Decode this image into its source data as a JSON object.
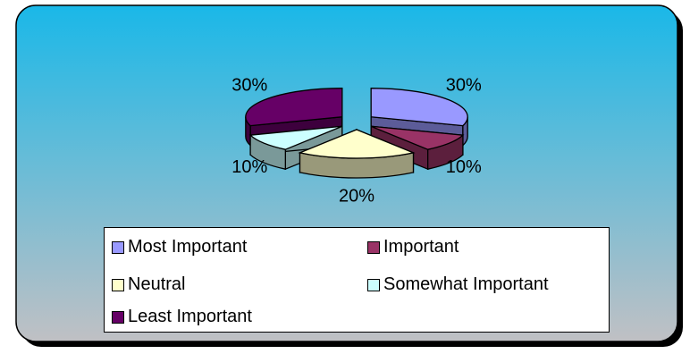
{
  "chart_data": {
    "type": "pie",
    "title": "",
    "categories": [
      "Most Important",
      "Important",
      "Neutral",
      "Somewhat Important",
      "Least Important"
    ],
    "values": [
      30,
      10,
      20,
      10,
      30
    ],
    "labels": [
      "30%",
      "10%",
      "20%",
      "10%",
      "30%"
    ],
    "colors": [
      "#9999ff",
      "#993366",
      "#ffffcc",
      "#ccffff",
      "#660066"
    ],
    "exploded": true,
    "three_d": true,
    "legend_position": "bottom"
  },
  "background": {
    "gradient_top": "#1ab8e8",
    "gradient_bottom": "#c0c0c4",
    "border": "#000000"
  }
}
